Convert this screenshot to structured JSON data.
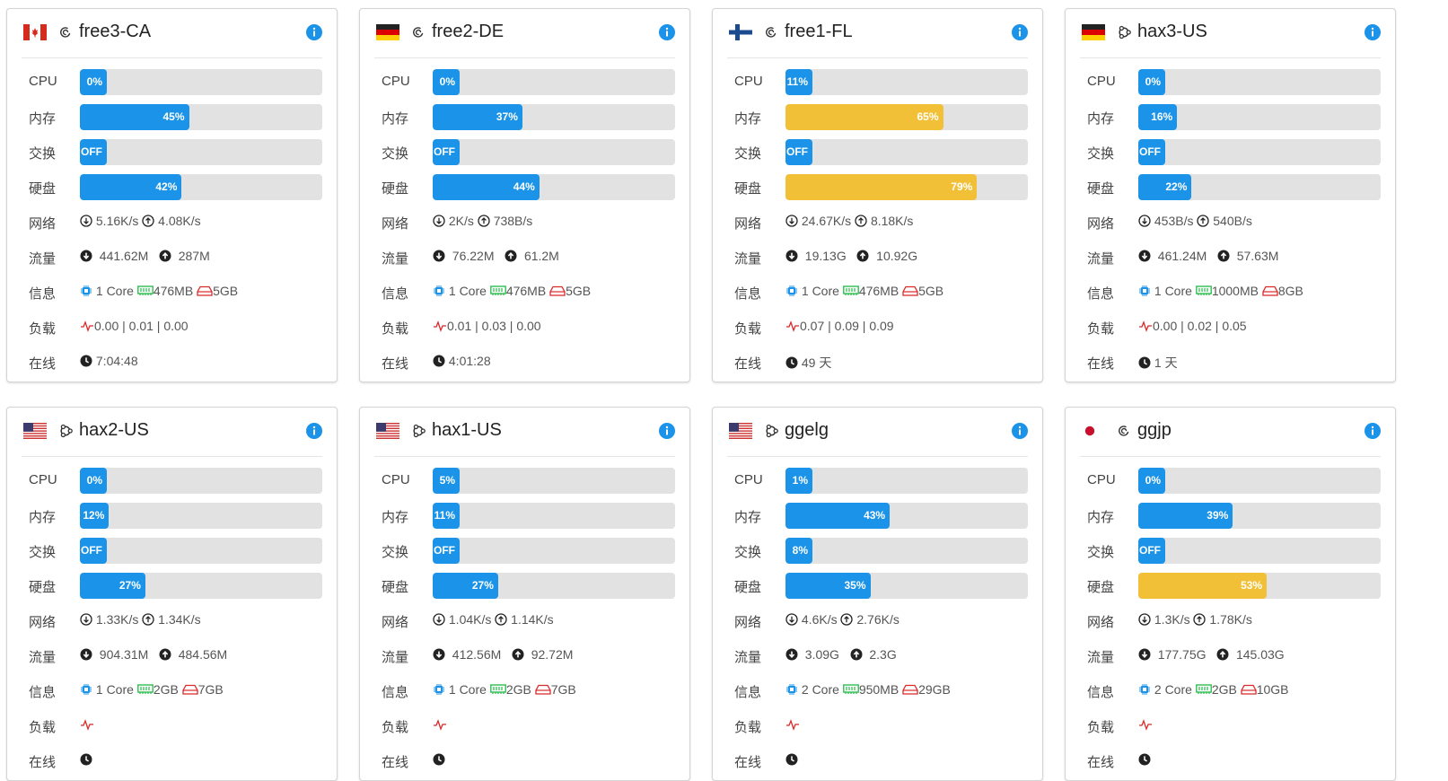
{
  "labels": {
    "cpu": "CPU",
    "mem": "内存",
    "swap": "交换",
    "disk": "硬盘",
    "net": "网络",
    "traffic": "流量",
    "info": "信息",
    "load": "负载",
    "uptime": "在线"
  },
  "colors": {
    "blue": "#1a93e8",
    "yellow": "#f2c037",
    "track": "#e2e2e2"
  },
  "servers": [
    {
      "name": "free3-CA",
      "flag": "canada-flag",
      "os": "debian-icon",
      "cpu": "0%",
      "cpu_pct": 0,
      "mem": "45%",
      "mem_pct": 45,
      "mem_color": "blue",
      "swap": "OFF",
      "swap_pct": 0,
      "disk": "42%",
      "disk_pct": 42,
      "disk_color": "blue",
      "net_down": "5.16K/s",
      "net_up": "4.08K/s",
      "traffic_down": "441.62M",
      "traffic_up": "287M",
      "cores": "1 Core",
      "ram": "476MB",
      "storage": "5GB",
      "load": "0.00 | 0.01 | 0.00",
      "uptime": "7:04:48"
    },
    {
      "name": "free2-DE",
      "flag": "germany-flag",
      "os": "debian-icon",
      "cpu": "0%",
      "cpu_pct": 0,
      "mem": "37%",
      "mem_pct": 37,
      "mem_color": "blue",
      "swap": "OFF",
      "swap_pct": 0,
      "disk": "44%",
      "disk_pct": 44,
      "disk_color": "blue",
      "net_down": "2K/s",
      "net_up": "738B/s",
      "traffic_down": "76.22M",
      "traffic_up": "61.2M",
      "cores": "1 Core",
      "ram": "476MB",
      "storage": "5GB",
      "load": "0.01 | 0.03 | 0.00",
      "uptime": "4:01:28"
    },
    {
      "name": "free1-FL",
      "flag": "finland-flag",
      "os": "debian-icon",
      "cpu": "11%",
      "cpu_pct": 11,
      "mem": "65%",
      "mem_pct": 65,
      "mem_color": "yellow",
      "swap": "OFF",
      "swap_pct": 0,
      "disk": "79%",
      "disk_pct": 79,
      "disk_color": "yellow",
      "net_down": "24.67K/s",
      "net_up": "8.18K/s",
      "traffic_down": "19.13G",
      "traffic_up": "10.92G",
      "cores": "1 Core",
      "ram": "476MB",
      "storage": "5GB",
      "load": "0.07 | 0.09 | 0.09",
      "uptime": "49 天"
    },
    {
      "name": "hax3-US",
      "flag": "germany-flag",
      "os": "ubuntu-icon",
      "cpu": "0%",
      "cpu_pct": 0,
      "mem": "16%",
      "mem_pct": 16,
      "mem_color": "blue",
      "swap": "OFF",
      "swap_pct": 0,
      "disk": "22%",
      "disk_pct": 22,
      "disk_color": "blue",
      "net_down": "453B/s",
      "net_up": "540B/s",
      "traffic_down": "461.24M",
      "traffic_up": "57.63M",
      "cores": "1 Core",
      "ram": "1000MB",
      "storage": "8GB",
      "load": "0.00 | 0.02 | 0.05",
      "uptime": "1 天"
    },
    {
      "name": "hax2-US",
      "flag": "usa-flag",
      "os": "ubuntu-icon",
      "cpu": "0%",
      "cpu_pct": 0,
      "mem": "12%",
      "mem_pct": 12,
      "mem_color": "blue",
      "swap": "OFF",
      "swap_pct": 0,
      "disk": "27%",
      "disk_pct": 27,
      "disk_color": "blue",
      "net_down": "1.33K/s",
      "net_up": "1.34K/s",
      "traffic_down": "904.31M",
      "traffic_up": "484.56M",
      "cores": "1 Core",
      "ram": "2GB",
      "storage": "7GB",
      "load": "",
      "uptime": ""
    },
    {
      "name": "hax1-US",
      "flag": "usa-flag",
      "os": "ubuntu-icon",
      "cpu": "5%",
      "cpu_pct": 5,
      "mem": "11%",
      "mem_pct": 11,
      "mem_color": "blue",
      "swap": "OFF",
      "swap_pct": 0,
      "disk": "27%",
      "disk_pct": 27,
      "disk_color": "blue",
      "net_down": "1.04K/s",
      "net_up": "1.14K/s",
      "traffic_down": "412.56M",
      "traffic_up": "92.72M",
      "cores": "1 Core",
      "ram": "2GB",
      "storage": "7GB",
      "load": "",
      "uptime": ""
    },
    {
      "name": "ggelg",
      "flag": "usa-flag",
      "os": "ubuntu-icon",
      "cpu": "1%",
      "cpu_pct": 1,
      "mem": "43%",
      "mem_pct": 43,
      "mem_color": "blue",
      "swap": "8%",
      "swap_pct": 8,
      "disk": "35%",
      "disk_pct": 35,
      "disk_color": "blue",
      "net_down": "4.6K/s",
      "net_up": "2.76K/s",
      "traffic_down": "3.09G",
      "traffic_up": "2.3G",
      "cores": "2 Core",
      "ram": "950MB",
      "storage": "29GB",
      "load": "",
      "uptime": ""
    },
    {
      "name": "ggjp",
      "flag": "japan-flag",
      "os": "debian-icon",
      "cpu": "0%",
      "cpu_pct": 0,
      "mem": "39%",
      "mem_pct": 39,
      "mem_color": "blue",
      "swap": "OFF",
      "swap_pct": 0,
      "disk": "53%",
      "disk_pct": 53,
      "disk_color": "yellow",
      "net_down": "1.3K/s",
      "net_up": "1.78K/s",
      "traffic_down": "177.75G",
      "traffic_up": "145.03G",
      "cores": "2 Core",
      "ram": "2GB",
      "storage": "10GB",
      "load": "",
      "uptime": ""
    }
  ]
}
